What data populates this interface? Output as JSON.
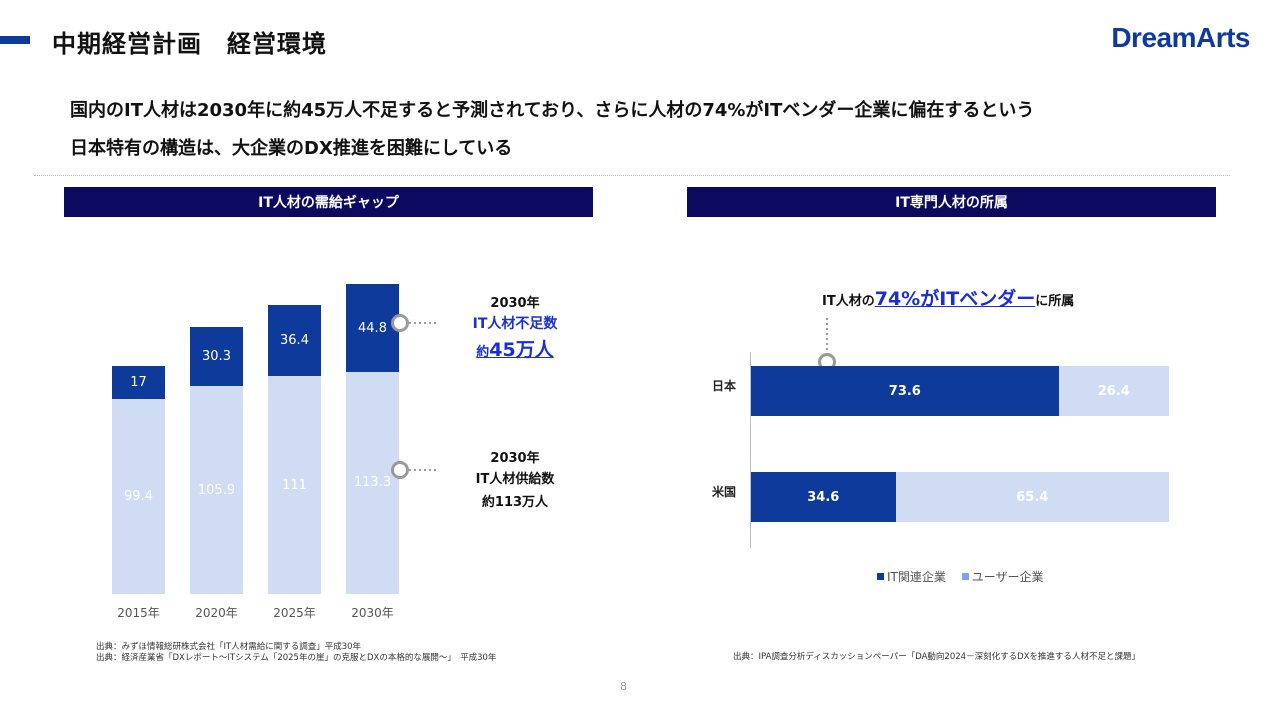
{
  "header": {
    "title": "中期経営計画　経営環境",
    "logo": "DreamArts"
  },
  "headline": {
    "line1": "国内のIT人材は2030年に約45万人不足すると予測されており、さらに人材の74%がITベンダー企業に偏在するという",
    "line2": "日本特有の構造は、大企業のDX推進を困難にしている"
  },
  "colors": {
    "dark_blue": "#0e3a9b",
    "light_blue": "#cfdcf3",
    "navy": "#0b0a5f",
    "accent_link": "#1b2fd0"
  },
  "left_panel": {
    "title": "IT人材の需給ギャップ",
    "callout_shortage": {
      "year": "2030年",
      "label": "IT人材不足数",
      "prefix": "約",
      "value": "45万人"
    },
    "callout_supply": {
      "year": "2030年",
      "label": "IT人材供給数",
      "value": "約113万人"
    },
    "sources": [
      "出典：みずほ情報総研株式会社「IT人材需給に関する調査」平成30年",
      "出典：経済産業省「DXレポート～ITシステム「2025年の崖」の克服とDXの本格的な展開～」　平成30年"
    ]
  },
  "right_panel": {
    "title": "IT専門人材の所属",
    "annotation_prefix": "IT人材の",
    "annotation_highlight": "74%がITベンダー",
    "annotation_suffix": "に所属",
    "source": "出典：IPA調査分析ディスカッションペーパー「DA動向2024－深刻化するDXを推進する人材不足と課題」"
  },
  "chart_data": [
    {
      "type": "bar",
      "stacked": true,
      "categories": [
        "2015年",
        "2020年",
        "2025年",
        "2030年"
      ],
      "series": [
        {
          "values": [
            99.4,
            105.9,
            111,
            113.3
          ],
          "color": "#cfdcf3"
        },
        {
          "values": [
            17,
            30.3,
            36.4,
            44.8
          ],
          "color": "#0e3a9b"
        }
      ],
      "ylim": [
        0,
        160
      ],
      "grid": false
    },
    {
      "type": "bar",
      "orientation": "horizontal",
      "stacked": true,
      "categories": [
        "日本",
        "米国"
      ],
      "series": [
        {
          "name": "IT関連企業",
          "values": [
            73.6,
            34.6
          ],
          "color": "#0e3a9b"
        },
        {
          "name": "ユーザー企業",
          "values": [
            26.4,
            65.4
          ],
          "color": "#cfdcf3"
        }
      ],
      "xlim": [
        0,
        100
      ],
      "legend": "bottom"
    }
  ],
  "page_number": "8"
}
